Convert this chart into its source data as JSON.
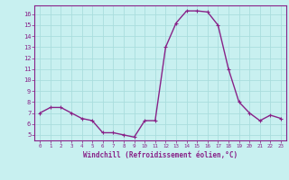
{
  "x": [
    0,
    1,
    2,
    3,
    4,
    5,
    6,
    7,
    8,
    9,
    10,
    11,
    12,
    13,
    14,
    15,
    16,
    17,
    18,
    19,
    20,
    21,
    22,
    23
  ],
  "y": [
    7.0,
    7.5,
    7.5,
    7.0,
    6.5,
    6.3,
    5.2,
    5.2,
    5.0,
    4.8,
    6.3,
    6.3,
    13.0,
    15.2,
    16.3,
    16.3,
    16.2,
    15.0,
    11.0,
    8.0,
    7.0,
    6.3,
    6.8,
    6.5
  ],
  "line_color": "#882288",
  "marker_color": "#882288",
  "bg_color": "#c8f0f0",
  "grid_color": "#aadddd",
  "xlabel": "Windchill (Refroidissement éolien,°C)",
  "ylabel_ticks": [
    5,
    6,
    7,
    8,
    9,
    10,
    11,
    12,
    13,
    14,
    15,
    16
  ],
  "ylim": [
    4.5,
    16.8
  ],
  "xlim": [
    -0.5,
    23.5
  ],
  "xticks": [
    0,
    1,
    2,
    3,
    4,
    5,
    6,
    7,
    8,
    9,
    10,
    11,
    12,
    13,
    14,
    15,
    16,
    17,
    18,
    19,
    20,
    21,
    22,
    23
  ],
  "axis_color": "#882288",
  "tick_label_color": "#882288",
  "xlabel_color": "#882288",
  "grid_linewidth": 0.6,
  "line_linewidth": 1.0
}
